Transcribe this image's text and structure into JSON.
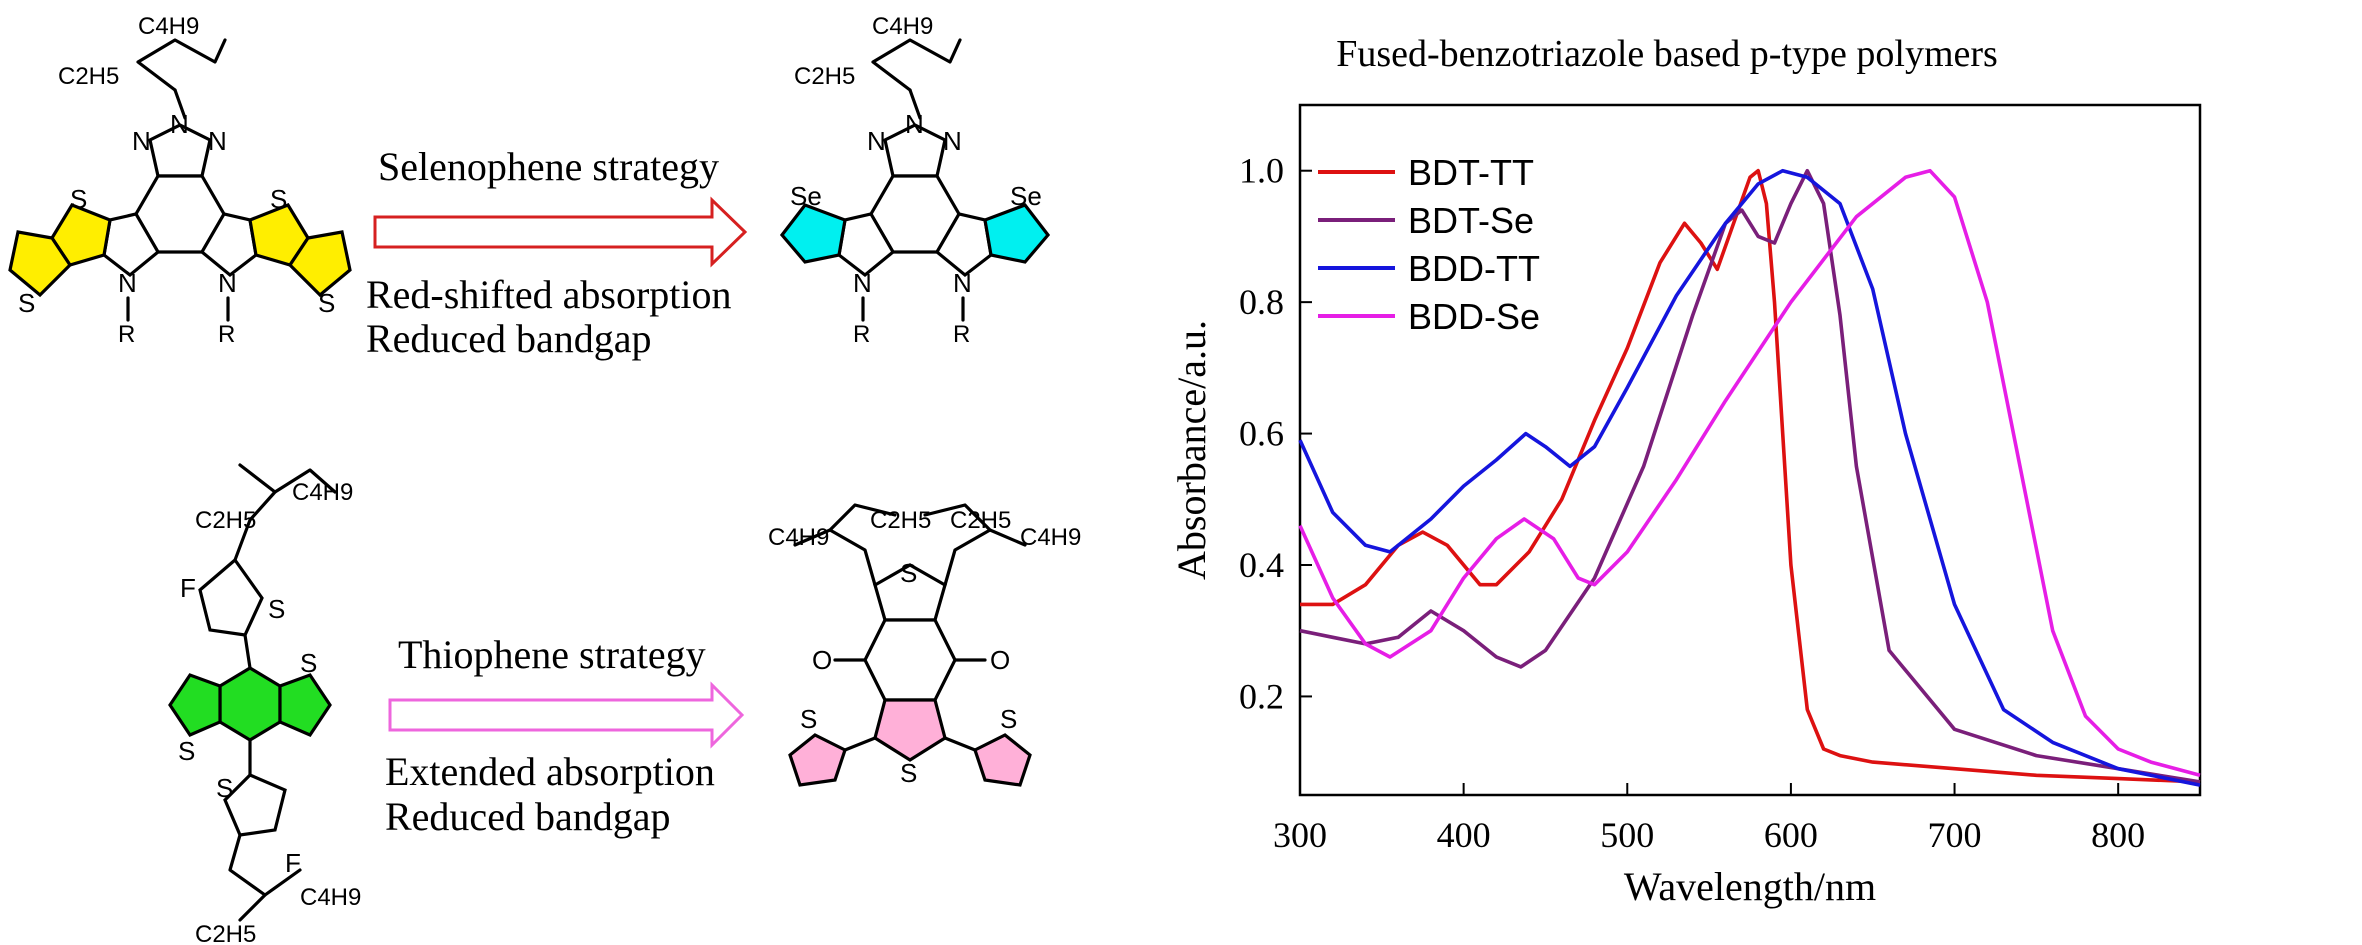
{
  "scheme": {
    "top": {
      "strategy_label": "Selenophene strategy",
      "effect_line1": "Red-shifted absorption",
      "effect_line2": "Reduced bandgap",
      "arrow_color": "#d62020",
      "reactant": {
        "side_chain_top": "C4H9",
        "side_chain_branch": "C2H5",
        "atom_S": "S",
        "atom_N": "N",
        "atom_R": "R"
      },
      "product": {
        "side_chain_top": "C4H9",
        "side_chain_branch": "C2H5",
        "atom_Se": "Se",
        "atom_N": "N",
        "atom_R": "R"
      }
    },
    "bottom": {
      "strategy_label": "Thiophene strategy",
      "effect_line1": "Extended absorption",
      "effect_line2": "Reduced bandgap",
      "arrow_color": "#ee66dd",
      "reactant": {
        "chain_a": "C4H9",
        "chain_b": "C2H5",
        "atom_F": "F",
        "atom_S": "S"
      },
      "product": {
        "chain_a": "C4H9",
        "chain_b": "C2H5",
        "atom_O": "O",
        "atom_S": "S"
      }
    }
  },
  "chart_data": {
    "type": "line",
    "title": "Fused-benzotriazole based p-type polymers",
    "xlabel": "Wavelength/nm",
    "ylabel": "Absorbance/a.u.",
    "xlim": [
      300,
      850
    ],
    "ylim": [
      0.05,
      1.1
    ],
    "xticks": [
      300,
      400,
      500,
      600,
      700,
      800
    ],
    "yticks": [
      0.2,
      0.4,
      0.6,
      0.8,
      1.0
    ],
    "ytick_labels": [
      "0.2",
      "0.4",
      "0.6",
      "0.8",
      "1.0"
    ],
    "legend_position": "top-left",
    "series": [
      {
        "name": "BDT-TT",
        "color": "#dd1111",
        "x": [
          300,
          320,
          340,
          360,
          375,
          390,
          410,
          420,
          440,
          460,
          480,
          500,
          520,
          535,
          545,
          555,
          565,
          575,
          580,
          585,
          590,
          600,
          610,
          620,
          630,
          650,
          700,
          750,
          800,
          850
        ],
        "y": [
          0.34,
          0.34,
          0.37,
          0.43,
          0.45,
          0.43,
          0.37,
          0.37,
          0.42,
          0.5,
          0.62,
          0.73,
          0.86,
          0.92,
          0.89,
          0.85,
          0.92,
          0.99,
          1.0,
          0.95,
          0.8,
          0.4,
          0.18,
          0.12,
          0.11,
          0.1,
          0.09,
          0.08,
          0.075,
          0.07
        ]
      },
      {
        "name": "BDT-Se",
        "color": "#7a1f7a",
        "x": [
          300,
          320,
          340,
          360,
          380,
          400,
          420,
          435,
          450,
          480,
          510,
          540,
          560,
          570,
          580,
          590,
          600,
          610,
          620,
          630,
          640,
          660,
          700,
          750,
          800,
          850
        ],
        "y": [
          0.3,
          0.29,
          0.28,
          0.29,
          0.33,
          0.3,
          0.26,
          0.245,
          0.27,
          0.38,
          0.55,
          0.78,
          0.92,
          0.94,
          0.9,
          0.89,
          0.95,
          1.0,
          0.95,
          0.78,
          0.55,
          0.27,
          0.15,
          0.11,
          0.09,
          0.07
        ]
      },
      {
        "name": "BDD-TT",
        "color": "#1515dd",
        "x": [
          300,
          320,
          340,
          355,
          380,
          400,
          420,
          438,
          450,
          465,
          480,
          500,
          530,
          560,
          580,
          595,
          610,
          630,
          650,
          670,
          700,
          730,
          760,
          800,
          850
        ],
        "y": [
          0.59,
          0.48,
          0.43,
          0.42,
          0.47,
          0.52,
          0.56,
          0.6,
          0.58,
          0.55,
          0.58,
          0.67,
          0.81,
          0.92,
          0.98,
          1.0,
          0.99,
          0.95,
          0.82,
          0.6,
          0.34,
          0.18,
          0.13,
          0.09,
          0.065
        ]
      },
      {
        "name": "BDD-Se",
        "color": "#e61ee6",
        "x": [
          300,
          320,
          340,
          355,
          380,
          400,
          420,
          437,
          455,
          470,
          480,
          500,
          530,
          560,
          600,
          640,
          670,
          685,
          700,
          720,
          740,
          760,
          780,
          800,
          820,
          850
        ],
        "y": [
          0.46,
          0.35,
          0.28,
          0.26,
          0.3,
          0.38,
          0.44,
          0.47,
          0.44,
          0.38,
          0.37,
          0.42,
          0.53,
          0.65,
          0.8,
          0.93,
          0.99,
          1.0,
          0.96,
          0.8,
          0.55,
          0.3,
          0.17,
          0.12,
          0.1,
          0.08
        ]
      }
    ]
  }
}
